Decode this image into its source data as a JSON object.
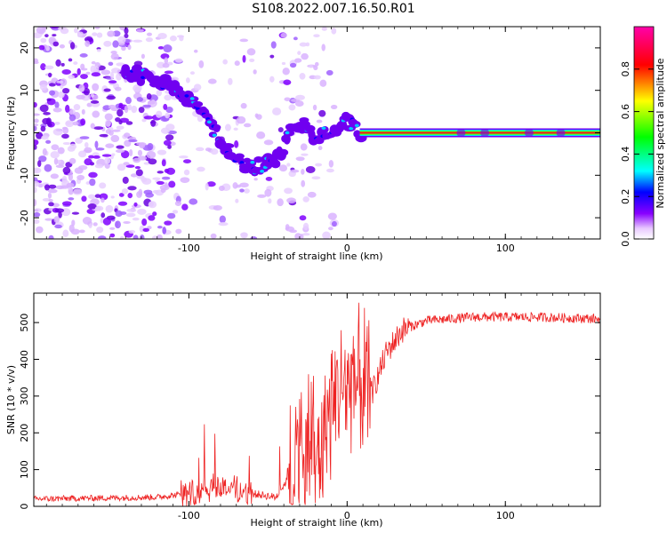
{
  "title": "S108.2022.007.16.50.R01",
  "chart_data": [
    {
      "type": "heatmap",
      "xlabel": "Height of straight line (km)",
      "ylabel": "Frequency (Hz)",
      "xlim": [
        -198,
        160
      ],
      "ylim": [
        -25,
        25
      ],
      "x_ticks": [
        -100,
        0,
        100
      ],
      "y_ticks": [
        -20,
        -10,
        0,
        10,
        20
      ],
      "colorbar": {
        "label": "Normalized spectral amplitude",
        "range": [
          0,
          1
        ],
        "ticks": [
          0.0,
          0.2,
          0.4,
          0.6,
          0.8
        ],
        "colors": [
          "#ffffff",
          "#e8c8ff",
          "#8800ff",
          "#0000ff",
          "#00ffff",
          "#00ff00",
          "#ffff00",
          "#ff0000",
          "#ff00aa"
        ]
      },
      "ridge": [
        {
          "x": -135,
          "y": 14
        },
        {
          "x": -120,
          "y": 12
        },
        {
          "x": -105,
          "y": 10
        },
        {
          "x": -95,
          "y": 6
        },
        {
          "x": -85,
          "y": 1
        },
        {
          "x": -75,
          "y": -4
        },
        {
          "x": -62,
          "y": -8
        },
        {
          "x": -45,
          "y": -7
        },
        {
          "x": -35,
          "y": 1
        },
        {
          "x": -25,
          "y": 2
        },
        {
          "x": -20,
          "y": -1
        },
        {
          "x": -10,
          "y": 0
        },
        {
          "x": 0,
          "y": 3
        },
        {
          "x": 8,
          "y": 0
        },
        {
          "x": 160,
          "y": 0
        }
      ]
    },
    {
      "type": "line",
      "xlabel": "Height of straight line (km)",
      "ylabel": "SNR (10 * v/v)",
      "xlim": [
        -198,
        160
      ],
      "ylim": [
        0,
        580
      ],
      "x_ticks": [
        -100,
        0,
        100
      ],
      "y_ticks": [
        0,
        100,
        200,
        300,
        400,
        500
      ],
      "series": [
        {
          "color": "#ee2222",
          "trend": [
            {
              "x": -198,
              "y": 20
            },
            {
              "x": -120,
              "y": 25
            },
            {
              "x": -100,
              "y": 35
            },
            {
              "x": -85,
              "y": 55
            },
            {
              "x": -75,
              "y": 50
            },
            {
              "x": -60,
              "y": 35
            },
            {
              "x": -45,
              "y": 25
            },
            {
              "x": -35,
              "y": 90
            },
            {
              "x": -30,
              "y": 160
            },
            {
              "x": -25,
              "y": 170
            },
            {
              "x": -20,
              "y": 130
            },
            {
              "x": -13,
              "y": 230
            },
            {
              "x": -5,
              "y": 320
            },
            {
              "x": 5,
              "y": 350
            },
            {
              "x": 15,
              "y": 300
            },
            {
              "x": 25,
              "y": 420
            },
            {
              "x": 35,
              "y": 480
            },
            {
              "x": 50,
              "y": 505
            },
            {
              "x": 80,
              "y": 515
            },
            {
              "x": 120,
              "y": 515
            },
            {
              "x": 160,
              "y": 510
            }
          ]
        }
      ]
    }
  ]
}
